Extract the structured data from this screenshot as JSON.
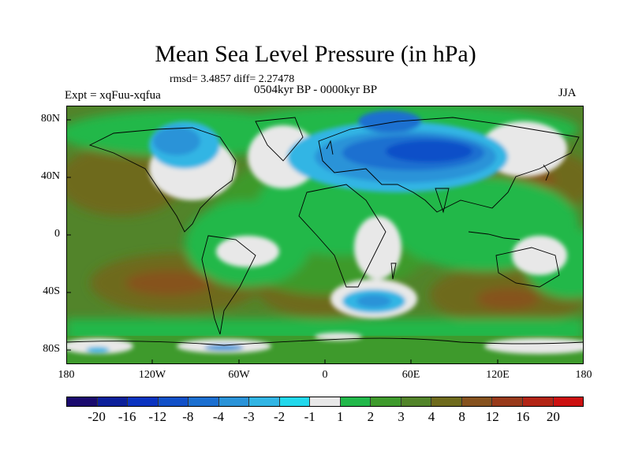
{
  "title": "Mean Sea Level Pressure (in hPa)",
  "stats": "rmsd= 3.4857 diff= 2.27478",
  "experiment": "Expt = xqFuu-xqfua",
  "period": "0504kyr BP - 0000kyr BP",
  "season": "JJA",
  "lat_labels": [
    "80N",
    "40N",
    "0",
    "40S",
    "80S"
  ],
  "lon_labels": [
    "180",
    "120W",
    "60W",
    "0",
    "60E",
    "120E",
    "180"
  ],
  "colorbar": {
    "colors": [
      "#1a0a6e",
      "#0c1f9a",
      "#0a33c0",
      "#1150c8",
      "#1b6fd0",
      "#2a93d8",
      "#31b5e4",
      "#22d8ec",
      "#e8e8e8",
      "#22b84a",
      "#3e9a2c",
      "#52842a",
      "#6e6a1c",
      "#86521e",
      "#983a1a",
      "#b22414",
      "#cc1010"
    ],
    "labels": [
      "-20",
      "-16",
      "-12",
      "-8",
      "-4",
      "-3",
      "-2",
      "-1",
      "1",
      "2",
      "3",
      "4",
      "8",
      "12",
      "16",
      "20"
    ]
  }
}
